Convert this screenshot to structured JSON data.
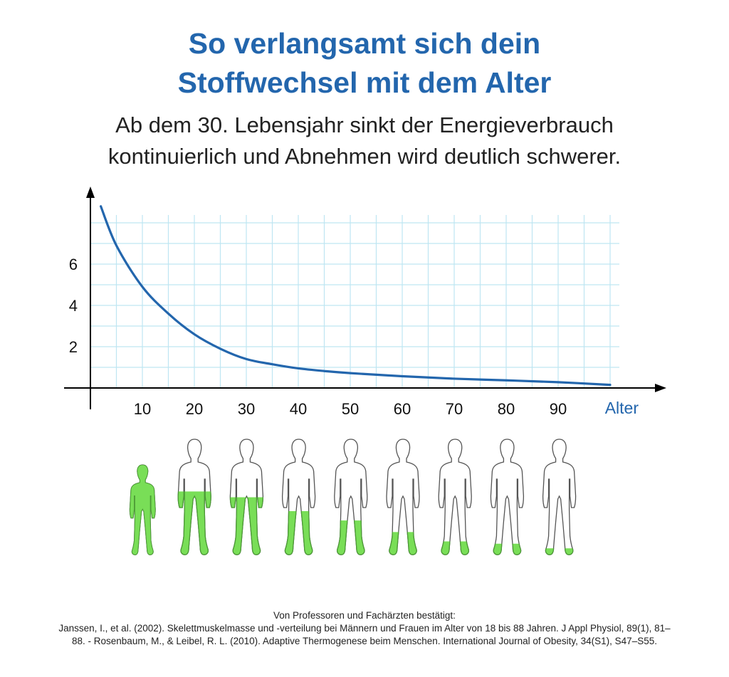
{
  "header": {
    "title_line1": "So verlangsamt sich dein",
    "title_line2": "Stoffwechsel mit dem Alter",
    "subtitle_line1": "Ab dem 30. Lebensjahr sinkt der Energieverbrauch",
    "subtitle_line2": "kontinuierlich und Abnehmen wird deutlich schwerer."
  },
  "chart_data": {
    "type": "line",
    "x_tick_labels": [
      "10",
      "20",
      "30",
      "40",
      "50",
      "60",
      "70",
      "80",
      "90"
    ],
    "y_tick_labels": [
      "2",
      "4",
      "6"
    ],
    "xlabel": "Alter",
    "ylabel": "",
    "xlim": [
      1,
      102
    ],
    "ylim": [
      0,
      8
    ],
    "grid": true,
    "series": [
      {
        "color": "#2366ad",
        "x": [
          2,
          5,
          10,
          15,
          20,
          25,
          30,
          35,
          40,
          45,
          50,
          60,
          70,
          80,
          90,
          100
        ],
        "y": [
          8.8,
          6.9,
          4.9,
          3.6,
          2.6,
          1.9,
          1.4,
          1.15,
          0.95,
          0.82,
          0.72,
          0.57,
          0.45,
          0.37,
          0.28,
          0.15
        ]
      }
    ]
  },
  "figures": {
    "fill_color": "#79de57",
    "levels": [
      1.0,
      0.55,
      0.5,
      0.38,
      0.3,
      0.2,
      0.12,
      0.1,
      0.06
    ]
  },
  "footer": {
    "line1": "Von Professoren und Fachärzten bestätigt:",
    "line2": "Janssen, I., et al. (2002). Skelettmuskelmasse und -verteilung bei Männern und Frauen im Alter von 18 bis 88 Jahren. J Appl Physiol, 89(1), 81–",
    "line3": "88. - Rosenbaum, M., & Leibel, R. L. (2010). Adaptive Thermogenese beim Menschen. International Journal of Obesity, 34(S1), S47–S55."
  }
}
